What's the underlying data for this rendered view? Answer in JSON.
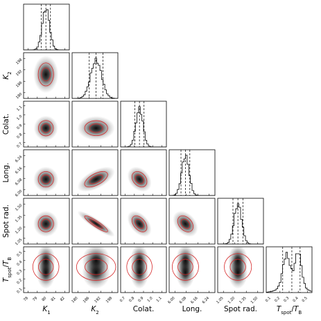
{
  "chart_data": {
    "type": "corner",
    "params": [
      {
        "key": "K1",
        "label": "K",
        "sub": "1",
        "ticks": [
          "78",
          "79",
          "80",
          "81",
          "82"
        ],
        "lim": [
          78,
          82
        ],
        "mean": 79.95,
        "sd": 0.32,
        "quantiles": [
          79.55,
          79.95,
          80.35
        ]
      },
      {
        "key": "K2",
        "label": "K",
        "sub": "2",
        "ticks": [
          "180",
          "186",
          "192",
          "198"
        ],
        "lim": [
          180,
          200
        ],
        "mean": 190.5,
        "sd": 2.4,
        "quantiles": [
          187.5,
          190.5,
          193.5
        ]
      },
      {
        "key": "colat",
        "label": "Colat.",
        "sub": "",
        "ticks": [
          "0.7",
          "0.8",
          "0.9",
          "1.0",
          "1.1"
        ],
        "lim": [
          0.7,
          1.15
        ],
        "mean": 0.885,
        "sd": 0.035,
        "quantiles": [
          0.84,
          0.885,
          0.93
        ]
      },
      {
        "key": "long",
        "label": "Long.",
        "sub": "",
        "ticks": [
          "6.00",
          "6.08",
          "6.16",
          "6.24"
        ],
        "lim": [
          5.94,
          6.25
        ],
        "mean": 6.05,
        "sd": 0.025,
        "quantiles": [
          6.02,
          6.05,
          6.08
        ]
      },
      {
        "key": "spotrad",
        "label": "Spot rad.",
        "sub": "",
        "ticks": [
          "1.05",
          "1.20",
          "1.35",
          "1.50"
        ],
        "lim": [
          0.95,
          1.55
        ],
        "mean": 1.215,
        "sd": 0.05,
        "quantiles": [
          1.15,
          1.215,
          1.28
        ]
      },
      {
        "key": "tspot",
        "label": "T",
        "sub": "spot",
        "over": "T",
        "oversub": "B",
        "ticks": [
          "0.1",
          "0.2",
          "0.3",
          "0.4",
          "0.5"
        ],
        "lim": [
          0.05,
          0.55
        ],
        "mean": 0.33,
        "sd": 0.07,
        "bimodal": [
          0.27,
          0.4
        ],
        "quantiles": [
          0.23,
          0.33,
          0.42
        ]
      }
    ],
    "row_ticks": {
      "K2": [
        "198",
        "192",
        "186",
        "180"
      ],
      "colat": [
        "1.1",
        "1.0",
        "0.9",
        "0.8",
        "0.7"
      ],
      "long": [
        "6.24",
        "6.16",
        "6.08",
        "6.00"
      ],
      "spotrad": [
        "1.50",
        "1.35",
        "1.20",
        "1.05"
      ],
      "tspot": [
        "0.5",
        "0.4",
        "0.3",
        "0.2",
        "0.1"
      ]
    },
    "correlations": {
      "long|K2": 0.6,
      "spotrad|K2": -0.9,
      "spotrad|colat": -0.45,
      "spotrad|long": -0.35,
      "long|colat": -0.3
    },
    "contour_color": "#d62728",
    "density_color": "#000000",
    "quantile_style": "dashed"
  }
}
